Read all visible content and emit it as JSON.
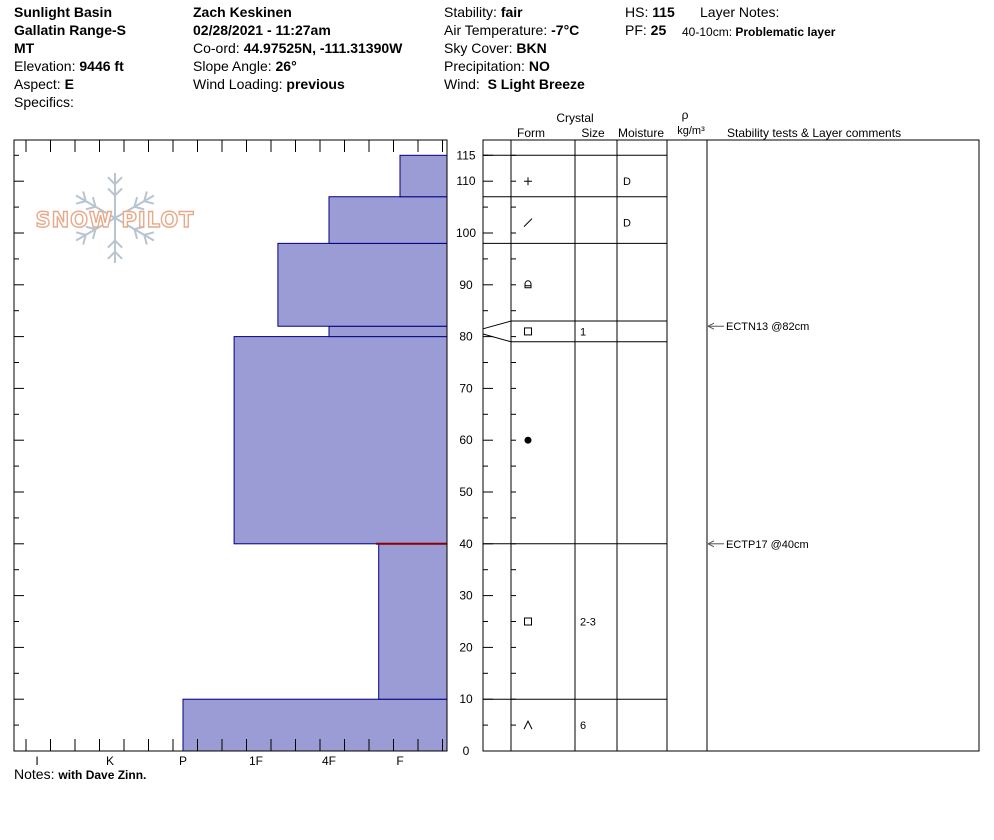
{
  "header": {
    "location": "Sunlight Basin",
    "range": "Gallatin Range-S",
    "state": "MT",
    "elevation_label": "Elevation:",
    "elevation_value": "9446 ft",
    "aspect_label": "Aspect:",
    "aspect_value": "E",
    "specifics_label": "Specifics:",
    "observer": "Zach Keskinen",
    "datetime": "02/28/2021 - 11:27am",
    "coord_label": "Co-ord:",
    "coord_value": "44.97525N, -111.31390W",
    "slope_label": "Slope Angle:",
    "slope_value": "26°",
    "wind_loading_label": "Wind Loading:",
    "wind_loading_value": "previous",
    "stability_label": "Stability:",
    "stability_value": "fair",
    "air_temp_label": "Air Temperature:",
    "air_temp_value": "-7°C",
    "sky_label": "Sky Cover:",
    "sky_value": "BKN",
    "precip_label": "Precipitation:",
    "precip_value": "NO",
    "wind_label": "Wind:",
    "wind_value": "S Light Breeze",
    "hs_label": "HS:",
    "hs_value": "115",
    "pf_label": "PF:",
    "pf_value": "25",
    "layer_notes_label": "Layer Notes:",
    "layer_note_range": "40-10cm:",
    "layer_note_text": "Problematic layer"
  },
  "notes": {
    "label": "Notes:",
    "value": "with Dave Zinn."
  },
  "watermark": {
    "text": "SNOW PILOT"
  },
  "columns": {
    "crystal": "Crystal",
    "form": "Form",
    "size": "Size",
    "moisture": "Moisture",
    "rho": "ρ",
    "density_unit": "kg/m³",
    "comments": "Stability tests & Layer comments"
  },
  "colors": {
    "fill": "#9b9bd6",
    "edge": "#000080",
    "weak_layer": "#8b0000"
  },
  "chart_data": {
    "type": "bar",
    "orientation": "horizontal-step",
    "height_axis": {
      "min": 0,
      "max": 115,
      "label_ticks": [
        "0",
        "10",
        "20",
        "30",
        "40",
        "50",
        "60",
        "70",
        "80",
        "90",
        "100",
        "110",
        "115"
      ]
    },
    "hardness_axis": {
      "categories": [
        "I",
        "K",
        "P",
        "1F",
        "4F",
        "F"
      ]
    },
    "hardness_profile": [
      {
        "bottom": 0,
        "top": 10,
        "hardness": "P"
      },
      {
        "bottom": 10,
        "top": 40,
        "hardness": "F+"
      },
      {
        "bottom": 40,
        "top": 80,
        "hardness": "1F-"
      },
      {
        "bottom": 80,
        "top": 82,
        "hardness": "4F"
      },
      {
        "bottom": 82,
        "top": 98,
        "hardness": "1F+"
      },
      {
        "bottom": 98,
        "top": 107,
        "hardness": "4F"
      },
      {
        "bottom": 107,
        "top": 115,
        "hardness": "F"
      }
    ],
    "hardness_index": {
      "I": 0,
      "K": 1,
      "P": 2,
      "1F": 3,
      "4F": 4,
      "F": 5,
      "F+": 4.7,
      "1F-": 2.7,
      "1F+": 3.3
    },
    "layer_boundaries": [
      115,
      107,
      98,
      83,
      79,
      40,
      10,
      0
    ],
    "layers": [
      {
        "y": 110,
        "form": "+",
        "size": "",
        "moisture": "D"
      },
      {
        "y": 102,
        "form": "slash",
        "size": "",
        "moisture": "D"
      },
      {
        "y": 90,
        "form": "rounding",
        "size": "",
        "moisture": ""
      },
      {
        "y": 81,
        "form": "square",
        "size": "1",
        "moisture": ""
      },
      {
        "y": 60,
        "form": "dot",
        "size": "",
        "moisture": ""
      },
      {
        "y": 25,
        "form": "square",
        "size": "2-3",
        "moisture": ""
      },
      {
        "y": 5,
        "form": "caret",
        "size": "6",
        "moisture": ""
      }
    ],
    "tests": [
      {
        "y": 82,
        "text": "ECTN13 @82cm"
      },
      {
        "y": 40,
        "text": "ECTP17 @40cm"
      }
    ],
    "weak_layer": {
      "y": 40
    }
  }
}
